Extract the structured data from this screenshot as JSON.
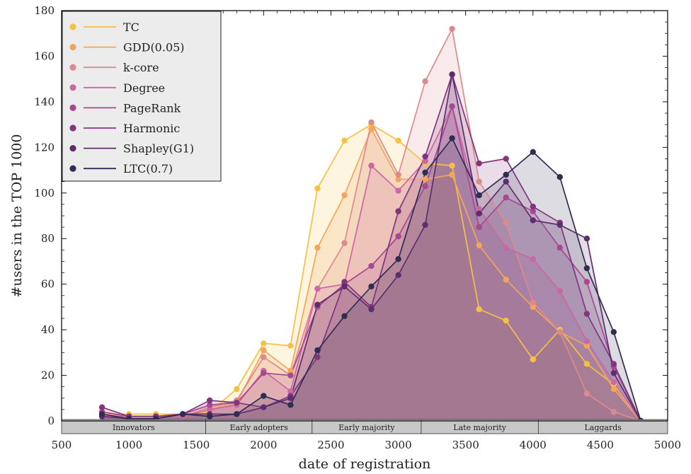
{
  "chart_data": {
    "type": "area",
    "xlabel": "date of registration",
    "ylabel": "#users in the TOP 1000",
    "xlim": [
      500,
      5000
    ],
    "ylim": [
      0,
      180
    ],
    "xticks": [
      500,
      1000,
      1500,
      2000,
      2500,
      3000,
      3500,
      4000,
      4500,
      5000
    ],
    "yticks": [
      0,
      20,
      40,
      60,
      80,
      100,
      120,
      140,
      160,
      180
    ],
    "grid": false,
    "legend_position": "top-left",
    "x": [
      800,
      1000,
      1200,
      1400,
      1600,
      1800,
      2000,
      2200,
      2400,
      2600,
      2800,
      3000,
      3200,
      3400,
      3600,
      3800,
      4000,
      4200,
      4400,
      4600,
      4800
    ],
    "series": [
      {
        "name": "TC",
        "color": "#f5c144",
        "values": [
          3,
          3,
          3,
          3,
          4,
          14,
          34,
          33,
          102,
          123,
          130,
          123,
          113,
          112,
          49,
          44,
          27,
          40,
          25,
          16,
          0
        ]
      },
      {
        "name": "GDD(0.05)",
        "color": "#f3a55b",
        "values": [
          3,
          2,
          2,
          2,
          5,
          8,
          31,
          22,
          76,
          99,
          128,
          106,
          106,
          108,
          77,
          62,
          50,
          39,
          33,
          14,
          0
        ]
      },
      {
        "name": "k-core",
        "color": "#dc8a8c",
        "values": [
          3,
          2,
          2,
          2,
          6,
          9,
          28,
          20,
          58,
          78,
          131,
          108,
          149,
          172,
          105,
          87,
          52,
          39,
          12,
          4,
          0
        ]
      },
      {
        "name": "Degree",
        "color": "#cc67a6",
        "values": [
          2,
          2,
          2,
          2,
          5,
          7,
          22,
          13,
          58,
          60,
          112,
          101,
          114,
          138,
          93,
          76,
          71,
          57,
          35,
          17,
          0
        ]
      },
      {
        "name": "PageRank",
        "color": "#a84792",
        "values": [
          4,
          2,
          2,
          3,
          7,
          8,
          21,
          20,
          50,
          60,
          68,
          81,
          103,
          138,
          85,
          98,
          92,
          76,
          61,
          24,
          0
        ]
      },
      {
        "name": "Harmonic",
        "color": "#80357f",
        "values": [
          6,
          2,
          2,
          3,
          9,
          8,
          6,
          11,
          28,
          61,
          50,
          92,
          116,
          152,
          113,
          115,
          94,
          87,
          47,
          25,
          0
        ]
      },
      {
        "name": "Shapley(G1)",
        "color": "#5c2e6e",
        "values": [
          2,
          1,
          1,
          3,
          3,
          3,
          6,
          10,
          51,
          59,
          49,
          64,
          86,
          152,
          91,
          105,
          88,
          86,
          80,
          21,
          0
        ]
      },
      {
        "name": "LTC(0.7)",
        "color": "#2f2e52",
        "values": [
          3,
          1,
          1,
          3,
          2,
          3,
          11,
          7,
          31,
          46,
          59,
          71,
          109,
          124,
          99,
          108,
          118,
          107,
          67,
          39,
          0
        ]
      }
    ],
    "bands": [
      {
        "label": "Innovators",
        "x0": 500,
        "x1": 1570
      },
      {
        "label": "Early adopters",
        "x0": 1570,
        "x1": 2360
      },
      {
        "label": "Early majority",
        "x0": 2360,
        "x1": 3170
      },
      {
        "label": "Late majority",
        "x0": 3170,
        "x1": 4040
      },
      {
        "label": "Laggards",
        "x0": 4040,
        "x1": 5000
      }
    ]
  }
}
